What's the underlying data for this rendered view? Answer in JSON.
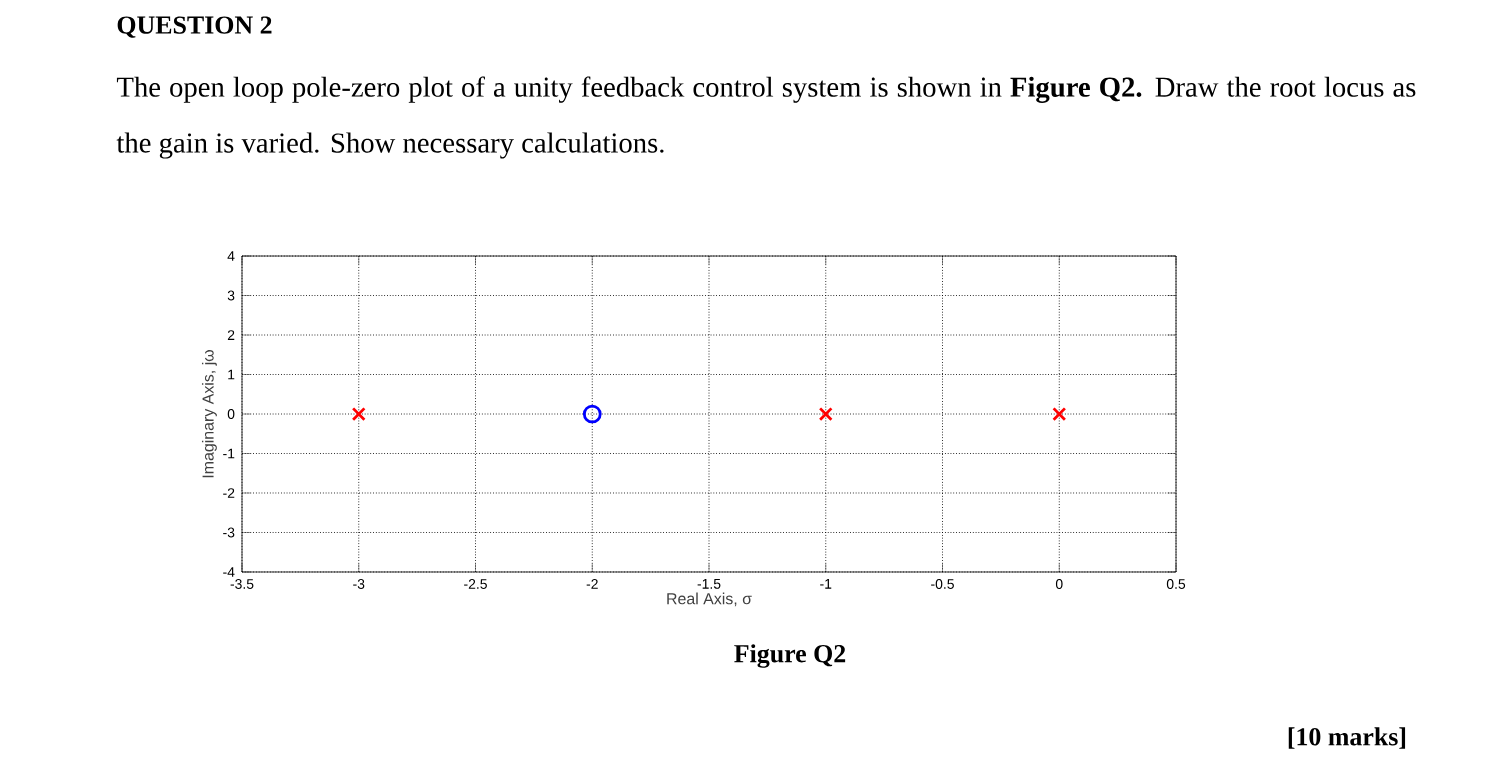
{
  "chart_data": {
    "type": "scatter",
    "title": "QUESTION 2",
    "subtitle": "The open loop pole-zero plot of a unity feedback control system is shown in **Figure Q2.** Draw the root locus as the gain is varied. Show necessary calculations.",
    "xlabel": "Real Axis, σ",
    "ylabel": "Imaginary Axis, jω",
    "annotations": [
      "Figure Q2",
      "[10 marks]"
    ],
    "series": [
      {
        "x": [
          -3,
          -1,
          0
        ],
        "values": [
          0,
          0,
          0
        ],
        "color": "#ff0000",
        "marker": "cross"
      },
      {
        "x": [
          -2
        ],
        "values": [
          0
        ],
        "color": "#0000ff",
        "marker": "circle"
      }
    ],
    "xlim": [
      -3.5,
      0.5
    ],
    "ylim": [
      -4,
      4
    ],
    "xticks": [
      -3.5,
      -3,
      -2.5,
      -2,
      -1.5,
      -1,
      -0.5,
      0,
      0.5
    ],
    "yticks": [
      -4,
      -3,
      -2,
      -1,
      0,
      1,
      2,
      3,
      4
    ],
    "grid": true
  }
}
